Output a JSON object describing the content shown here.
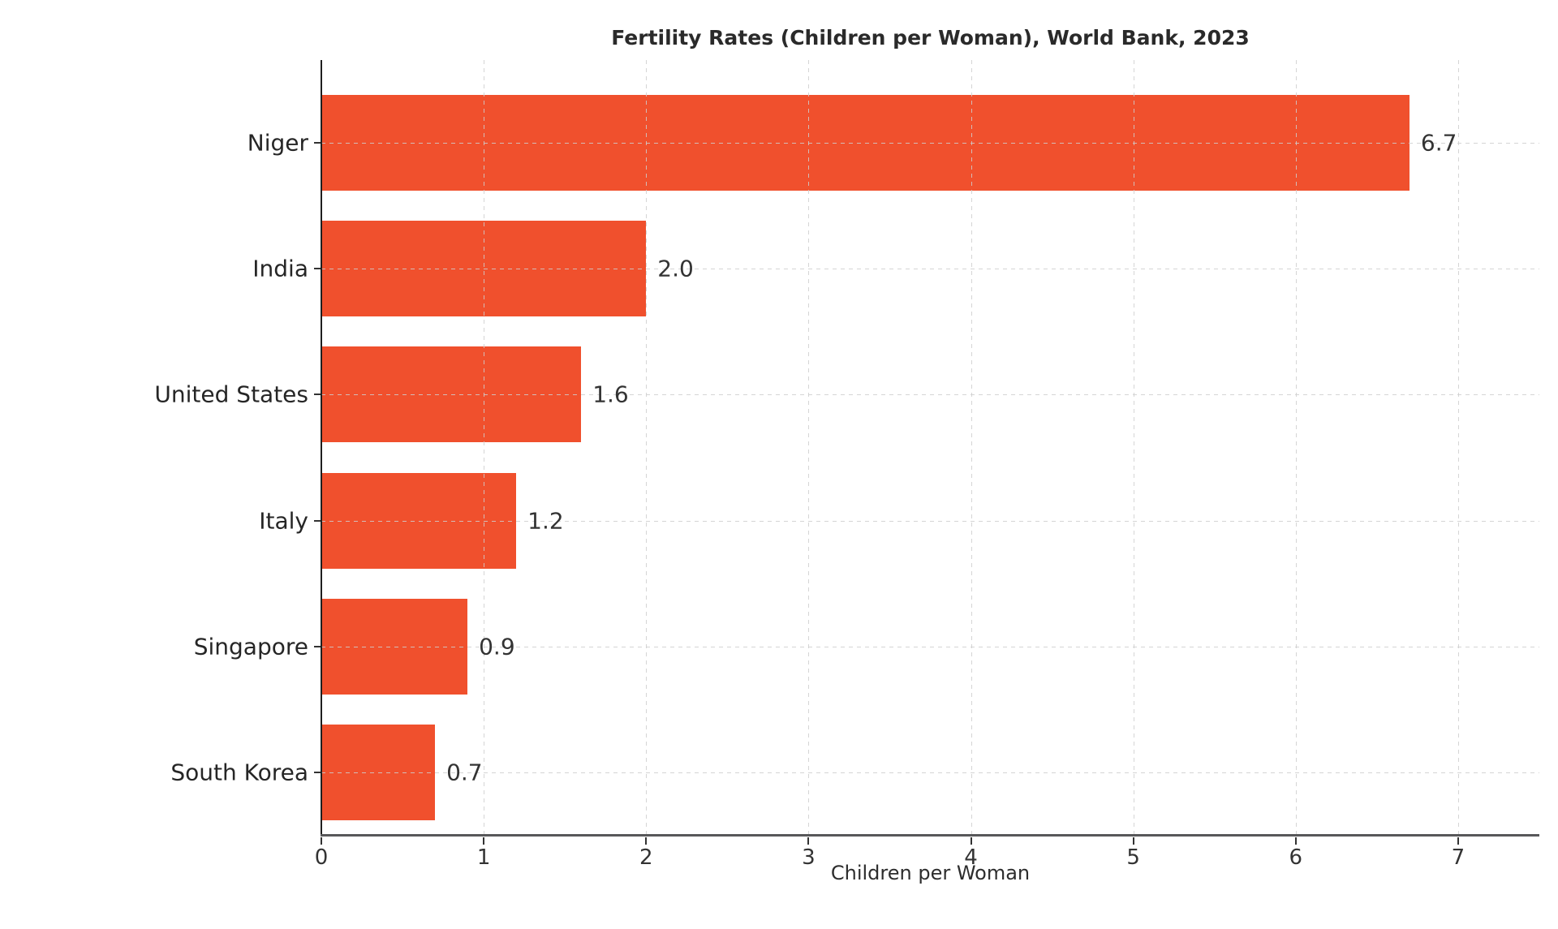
{
  "chart_data": {
    "type": "bar",
    "orientation": "horizontal",
    "title": "Fertility Rates (Children per Woman), World Bank, 2023",
    "xlabel": "Children per Woman",
    "ylabel": "",
    "categories": [
      "Niger",
      "India",
      "United States",
      "Italy",
      "Singapore",
      "South Korea"
    ],
    "values": [
      6.7,
      2.0,
      1.6,
      1.2,
      0.9,
      0.7
    ],
    "value_labels": [
      "6.7",
      "2.0",
      "1.6",
      "1.2",
      "0.9",
      "0.7"
    ],
    "xlim": [
      0,
      7.5
    ],
    "xticks": [
      0,
      1,
      2,
      3,
      4,
      5,
      6,
      7
    ],
    "xtick_labels": [
      "0",
      "1",
      "2",
      "3",
      "4",
      "5",
      "6",
      "7"
    ],
    "grid": "dashed, both axes, drawn over bars",
    "legend_position": "none",
    "colors": {
      "bar": "#F0502D",
      "grid": "#CECECE",
      "left_spine": "#1F1F1F",
      "bottom_spine": "#58585A",
      "text": "#2D2D2D"
    }
  }
}
